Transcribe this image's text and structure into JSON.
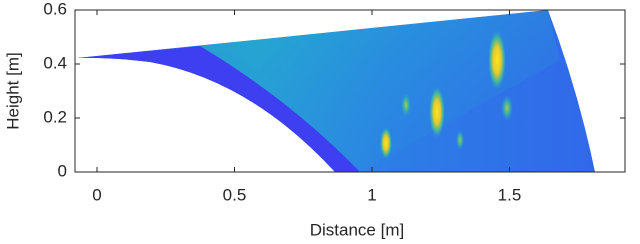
{
  "chart_data": {
    "type": "image",
    "xlabel": "Distance [m]",
    "ylabel": "Height [m]",
    "xlim": [
      -0.08,
      1.92
    ],
    "ylim": [
      0,
      0.6
    ],
    "xticks": [
      0,
      0.5,
      1,
      1.5
    ],
    "yticks": [
      0,
      0.2,
      0.4,
      0.6
    ]
  }
}
